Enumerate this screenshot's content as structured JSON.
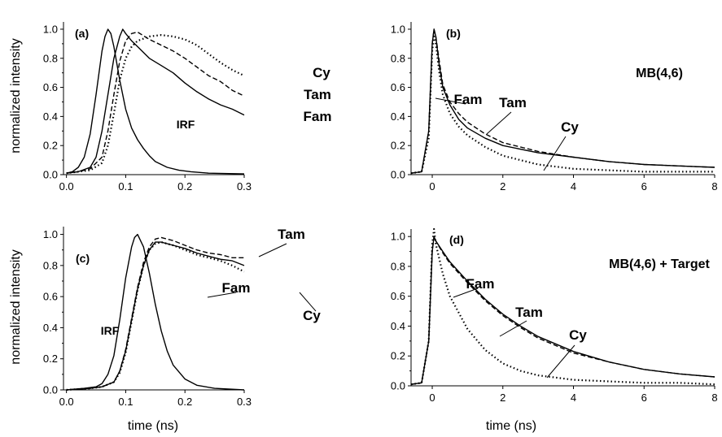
{
  "figure": {
    "ylabel_top": "normalized intensity",
    "ylabel_bottom": "normalized intensity",
    "xlabel_left": "time (ns)",
    "xlabel_right": "time (ns)"
  },
  "chart_data": [
    {
      "panel": "(a)",
      "type": "line",
      "title": "",
      "xlabel": "",
      "ylabel": "normalized intensity",
      "xlim": [
        -0.005,
        0.3
      ],
      "ylim": [
        0,
        1.05
      ],
      "xticks": [
        "0.0",
        "0.1",
        "0.2",
        "0.3"
      ],
      "yticks": [
        "0.0",
        "0.2",
        "0.4",
        "0.6",
        "0.8",
        "1.0"
      ],
      "grid": false,
      "annotations": [
        "IRF",
        "Cy",
        "Tam",
        "Fam"
      ],
      "series": [
        {
          "name": "IRF",
          "style": "solid",
          "x": [
            0,
            0.01,
            0.02,
            0.03,
            0.04,
            0.05,
            0.06,
            0.065,
            0.07,
            0.075,
            0.08,
            0.09,
            0.1,
            0.11,
            0.12,
            0.13,
            0.14,
            0.15,
            0.17,
            0.19,
            0.21,
            0.24,
            0.3
          ],
          "y": [
            0.01,
            0.02,
            0.05,
            0.12,
            0.28,
            0.55,
            0.85,
            0.95,
            1.0,
            0.97,
            0.88,
            0.65,
            0.45,
            0.32,
            0.24,
            0.18,
            0.13,
            0.09,
            0.05,
            0.03,
            0.02,
            0.01,
            0.005
          ]
        },
        {
          "name": "Fam",
          "style": "solid",
          "x": [
            0,
            0.02,
            0.04,
            0.05,
            0.06,
            0.07,
            0.08,
            0.09,
            0.095,
            0.1,
            0.11,
            0.12,
            0.14,
            0.16,
            0.18,
            0.2,
            0.22,
            0.24,
            0.26,
            0.28,
            0.3
          ],
          "y": [
            0.01,
            0.02,
            0.05,
            0.12,
            0.3,
            0.55,
            0.8,
            0.95,
            1.0,
            0.97,
            0.92,
            0.88,
            0.8,
            0.75,
            0.7,
            0.63,
            0.57,
            0.52,
            0.48,
            0.45,
            0.41
          ]
        },
        {
          "name": "Tam",
          "style": "dashed",
          "x": [
            0,
            0.02,
            0.04,
            0.06,
            0.07,
            0.08,
            0.09,
            0.1,
            0.11,
            0.12,
            0.14,
            0.16,
            0.18,
            0.2,
            0.22,
            0.24,
            0.26,
            0.28,
            0.3
          ],
          "y": [
            0.01,
            0.02,
            0.04,
            0.12,
            0.3,
            0.55,
            0.78,
            0.92,
            0.97,
            0.98,
            0.93,
            0.89,
            0.85,
            0.8,
            0.74,
            0.68,
            0.64,
            0.58,
            0.54
          ]
        },
        {
          "name": "Cy",
          "style": "dotted",
          "x": [
            0,
            0.02,
            0.04,
            0.06,
            0.07,
            0.08,
            0.09,
            0.1,
            0.11,
            0.12,
            0.14,
            0.16,
            0.18,
            0.2,
            0.22,
            0.24,
            0.26,
            0.28,
            0.3
          ],
          "y": [
            0.01,
            0.02,
            0.03,
            0.08,
            0.2,
            0.42,
            0.65,
            0.8,
            0.88,
            0.92,
            0.95,
            0.96,
            0.95,
            0.93,
            0.89,
            0.83,
            0.77,
            0.72,
            0.68
          ]
        }
      ]
    },
    {
      "panel": "(b)",
      "type": "line",
      "title": "MB(4,6)",
      "xlabel": "",
      "ylabel": "",
      "xlim": [
        -0.6,
        8
      ],
      "ylim": [
        0,
        1.05
      ],
      "xticks": [
        "0",
        "2",
        "4",
        "6",
        "8"
      ],
      "yticks": [
        "0.0",
        "0.2",
        "0.4",
        "0.6",
        "0.8",
        "1.0"
      ],
      "grid": false,
      "annotations": [
        "Fam",
        "Tam",
        "Cy"
      ],
      "series": [
        {
          "name": "Fam",
          "style": "solid",
          "x": [
            -0.6,
            -0.3,
            -0.1,
            0,
            0.05,
            0.1,
            0.2,
            0.3,
            0.5,
            0.75,
            1,
            1.5,
            2,
            3,
            4,
            5,
            6,
            7,
            8
          ],
          "y": [
            0.01,
            0.02,
            0.3,
            0.9,
            1.0,
            0.95,
            0.75,
            0.6,
            0.48,
            0.38,
            0.32,
            0.25,
            0.2,
            0.15,
            0.12,
            0.09,
            0.07,
            0.06,
            0.05
          ]
        },
        {
          "name": "Tam",
          "style": "dashed",
          "x": [
            -0.6,
            -0.3,
            -0.1,
            0,
            0.05,
            0.1,
            0.2,
            0.3,
            0.5,
            0.75,
            1,
            1.5,
            2,
            3,
            4,
            5,
            6,
            7,
            8
          ],
          "y": [
            0.01,
            0.02,
            0.3,
            0.9,
            1.0,
            0.95,
            0.78,
            0.62,
            0.5,
            0.42,
            0.36,
            0.28,
            0.22,
            0.16,
            0.12,
            0.09,
            0.07,
            0.06,
            0.05
          ]
        },
        {
          "name": "Cy",
          "style": "dotted",
          "x": [
            -0.6,
            -0.3,
            -0.1,
            0,
            0.05,
            0.1,
            0.2,
            0.3,
            0.5,
            0.75,
            1,
            1.5,
            2,
            3,
            4,
            5,
            6,
            7,
            8
          ],
          "y": [
            0.01,
            0.02,
            0.25,
            0.85,
            0.95,
            0.9,
            0.7,
            0.55,
            0.42,
            0.33,
            0.27,
            0.19,
            0.13,
            0.07,
            0.04,
            0.03,
            0.02,
            0.02,
            0.02
          ]
        }
      ]
    },
    {
      "panel": "(c)",
      "type": "line",
      "title": "",
      "xlabel": "time (ns)",
      "ylabel": "normalized intensity",
      "xlim": [
        -0.005,
        0.3
      ],
      "ylim": [
        0,
        1.05
      ],
      "xticks": [
        "0.0",
        "0.1",
        "0.2",
        "0.3"
      ],
      "yticks": [
        "0.0",
        "0.2",
        "0.4",
        "0.6",
        "0.8",
        "1.0"
      ],
      "grid": false,
      "annotations": [
        "IRF",
        "Tam",
        "Fam",
        "Cy"
      ],
      "series": [
        {
          "name": "IRF",
          "style": "solid",
          "x": [
            0,
            0.03,
            0.05,
            0.06,
            0.07,
            0.08,
            0.09,
            0.1,
            0.11,
            0.115,
            0.12,
            0.13,
            0.14,
            0.15,
            0.16,
            0.17,
            0.18,
            0.2,
            0.22,
            0.25,
            0.3
          ],
          "y": [
            0.0,
            0.01,
            0.02,
            0.04,
            0.1,
            0.22,
            0.45,
            0.72,
            0.92,
            0.98,
            1.0,
            0.92,
            0.75,
            0.55,
            0.38,
            0.25,
            0.16,
            0.07,
            0.03,
            0.01,
            0.0
          ]
        },
        {
          "name": "Fam",
          "style": "solid",
          "x": [
            0,
            0.04,
            0.06,
            0.08,
            0.09,
            0.1,
            0.11,
            0.12,
            0.13,
            0.14,
            0.15,
            0.16,
            0.18,
            0.2,
            0.22,
            0.24,
            0.26,
            0.28,
            0.3
          ],
          "y": [
            0.0,
            0.01,
            0.02,
            0.05,
            0.12,
            0.25,
            0.45,
            0.65,
            0.8,
            0.9,
            0.95,
            0.95,
            0.93,
            0.91,
            0.88,
            0.86,
            0.84,
            0.83,
            0.8
          ]
        },
        {
          "name": "Tam",
          "style": "dashed",
          "x": [
            0,
            0.04,
            0.06,
            0.08,
            0.09,
            0.1,
            0.11,
            0.12,
            0.13,
            0.14,
            0.15,
            0.16,
            0.18,
            0.2,
            0.22,
            0.24,
            0.26,
            0.28,
            0.3
          ],
          "y": [
            0.0,
            0.01,
            0.02,
            0.05,
            0.12,
            0.26,
            0.46,
            0.66,
            0.82,
            0.92,
            0.97,
            0.98,
            0.96,
            0.93,
            0.9,
            0.88,
            0.87,
            0.85,
            0.85
          ]
        },
        {
          "name": "Cy",
          "style": "dotted",
          "x": [
            0,
            0.04,
            0.06,
            0.08,
            0.09,
            0.1,
            0.11,
            0.12,
            0.13,
            0.14,
            0.15,
            0.16,
            0.18,
            0.2,
            0.22,
            0.24,
            0.26,
            0.28,
            0.3
          ],
          "y": [
            0.0,
            0.01,
            0.02,
            0.05,
            0.11,
            0.24,
            0.44,
            0.64,
            0.8,
            0.9,
            0.94,
            0.95,
            0.93,
            0.9,
            0.87,
            0.85,
            0.83,
            0.8,
            0.76
          ]
        }
      ]
    },
    {
      "panel": "(d)",
      "type": "line",
      "title": "MB(4,6) + Target",
      "xlabel": "time (ns)",
      "ylabel": "",
      "xlim": [
        -0.6,
        8
      ],
      "ylim": [
        0,
        1.05
      ],
      "xticks": [
        "0",
        "2",
        "4",
        "6",
        "8"
      ],
      "yticks": [
        "0.0",
        "0.2",
        "0.4",
        "0.6",
        "0.8",
        "1.0"
      ],
      "grid": false,
      "annotations": [
        "Fam",
        "Tam",
        "Cy"
      ],
      "series": [
        {
          "name": "Fam",
          "style": "solid",
          "x": [
            -0.6,
            -0.3,
            -0.1,
            0,
            0.05,
            0.1,
            0.3,
            0.5,
            1,
            1.5,
            2,
            2.5,
            3,
            4,
            5,
            6,
            7,
            8
          ],
          "y": [
            0.01,
            0.02,
            0.3,
            0.9,
            1.0,
            0.97,
            0.9,
            0.83,
            0.7,
            0.58,
            0.48,
            0.4,
            0.33,
            0.23,
            0.16,
            0.11,
            0.08,
            0.06
          ]
        },
        {
          "name": "Tam",
          "style": "dashed",
          "x": [
            -0.6,
            -0.3,
            -0.1,
            0,
            0.05,
            0.1,
            0.3,
            0.5,
            1,
            1.5,
            2,
            2.5,
            3,
            4,
            5,
            6,
            7,
            8
          ],
          "y": [
            0.01,
            0.02,
            0.3,
            0.9,
            1.0,
            0.97,
            0.89,
            0.82,
            0.69,
            0.57,
            0.47,
            0.39,
            0.32,
            0.22,
            0.16,
            0.11,
            0.08,
            0.06
          ]
        },
        {
          "name": "Cy",
          "style": "dotted",
          "x": [
            -0.6,
            -0.3,
            -0.1,
            0,
            0.05,
            0.1,
            0.3,
            0.5,
            1,
            1.5,
            2,
            2.5,
            3,
            4,
            5,
            6,
            7,
            8
          ],
          "y": [
            0.01,
            0.02,
            0.3,
            0.95,
            1.05,
            0.95,
            0.75,
            0.6,
            0.38,
            0.24,
            0.15,
            0.1,
            0.07,
            0.04,
            0.03,
            0.02,
            0.02,
            0.01
          ]
        }
      ]
    }
  ]
}
